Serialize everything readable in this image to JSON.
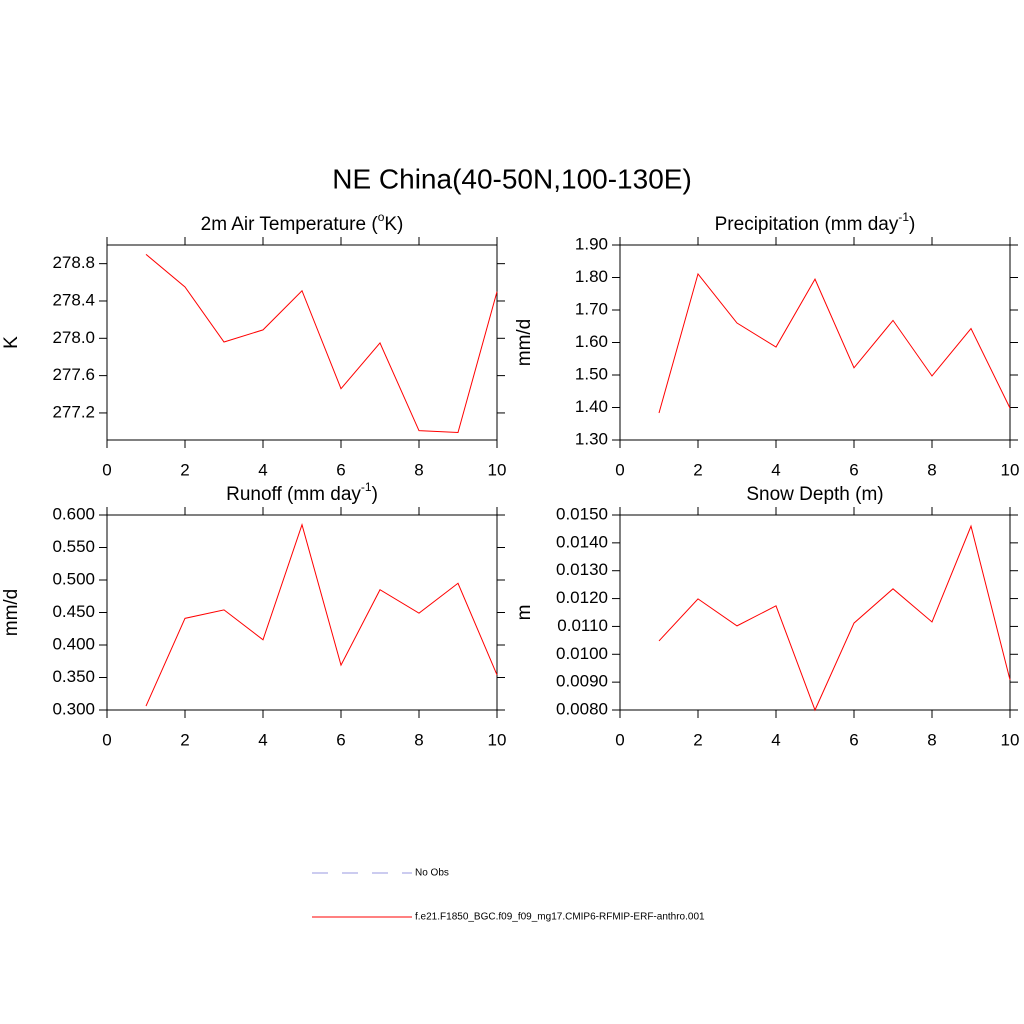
{
  "title": "NE China(40-50N,100-130E)",
  "legend": [
    {
      "label": "No Obs",
      "color": "#9a9ae0",
      "dashed": true
    },
    {
      "label": "f.e21.F1850_BGC.f09_f09_mg17.CMIP6-RFMIP-ERF-anthro.001",
      "color": "#ff0000",
      "dashed": false
    }
  ],
  "chart_data": [
    {
      "type": "line",
      "title": [
        {
          "text": "2m Air Temperature ("
        },
        {
          "text": "o",
          "sup": true
        },
        {
          "text": "K)"
        }
      ],
      "y_label": "K",
      "x": [
        1,
        2,
        3,
        4,
        5,
        6,
        7,
        8,
        9,
        10
      ],
      "values": [
        278.9,
        278.55,
        277.96,
        278.09,
        278.51,
        277.46,
        277.95,
        277.01,
        276.99,
        278.5
      ],
      "color": "#ff0000",
      "xlim": [
        0,
        10
      ],
      "xticks": [
        0,
        2,
        4,
        6,
        8,
        10
      ],
      "ylim": [
        276.91,
        279.0
      ],
      "yticks": [
        277.2,
        277.6,
        {
          "value": 278.0,
          "label": "278.0"
        },
        278.4,
        278.8
      ]
    },
    {
      "type": "line",
      "title": [
        {
          "text": "Precipitation (mm day"
        },
        {
          "text": "-1",
          "sup": true
        },
        {
          "text": ")"
        }
      ],
      "y_label": "mm/d",
      "x": [
        1,
        2,
        3,
        4,
        5,
        6,
        7,
        8,
        9,
        10
      ],
      "values": [
        1.383,
        1.811,
        1.66,
        1.586,
        1.795,
        1.522,
        1.668,
        1.497,
        1.643,
        1.398
      ],
      "color": "#ff0000",
      "xlim": [
        0,
        10
      ],
      "xticks": [
        0,
        2,
        4,
        6,
        8,
        10
      ],
      "ylim": [
        1.3,
        1.9
      ],
      "yticks": [
        {
          "value": 1.3,
          "label": "1.30"
        },
        {
          "value": 1.4,
          "label": "1.40"
        },
        {
          "value": 1.5,
          "label": "1.50"
        },
        {
          "value": 1.6,
          "label": "1.60"
        },
        {
          "value": 1.7,
          "label": "1.70"
        },
        {
          "value": 1.8,
          "label": "1.80"
        },
        {
          "value": 1.9,
          "label": "1.90"
        }
      ]
    },
    {
      "type": "line",
      "title": [
        {
          "text": "Runoff (mm day"
        },
        {
          "text": "-1",
          "sup": true
        },
        {
          "text": ")"
        }
      ],
      "y_label": "mm/d",
      "x": [
        1,
        2,
        3,
        4,
        5,
        6,
        7,
        8,
        9,
        10
      ],
      "values": [
        0.306,
        0.441,
        0.454,
        0.408,
        0.585,
        0.369,
        0.485,
        0.449,
        0.495,
        0.354
      ],
      "color": "#ff0000",
      "xlim": [
        0,
        10
      ],
      "xticks": [
        0,
        2,
        4,
        6,
        8,
        10
      ],
      "ylim": [
        0.3,
        0.6
      ],
      "yticks": [
        {
          "value": 0.3,
          "label": "0.300"
        },
        {
          "value": 0.35,
          "label": "0.350"
        },
        {
          "value": 0.4,
          "label": "0.400"
        },
        {
          "value": 0.45,
          "label": "0.450"
        },
        {
          "value": 0.5,
          "label": "0.500"
        },
        {
          "value": 0.55,
          "label": "0.550"
        },
        {
          "value": 0.6,
          "label": "0.600"
        }
      ]
    },
    {
      "type": "line",
      "title": [
        {
          "text": "Snow Depth (m)"
        }
      ],
      "y_label": "m",
      "x": [
        1,
        2,
        3,
        4,
        5,
        6,
        7,
        8,
        9,
        10
      ],
      "values": [
        0.01048,
        0.01199,
        0.01102,
        0.01174,
        0.008,
        0.01112,
        0.01235,
        0.01116,
        0.0146,
        0.00908
      ],
      "color": "#ff0000",
      "xlim": [
        0,
        10
      ],
      "xticks": [
        0,
        2,
        4,
        6,
        8,
        10
      ],
      "ylim": [
        0.008,
        0.015
      ],
      "yticks": [
        {
          "value": 0.008,
          "label": "0.0080"
        },
        {
          "value": 0.009,
          "label": "0.0090"
        },
        {
          "value": 0.01,
          "label": "0.0100"
        },
        {
          "value": 0.011,
          "label": "0.0110"
        },
        {
          "value": 0.012,
          "label": "0.0120"
        },
        {
          "value": 0.013,
          "label": "0.0130"
        },
        {
          "value": 0.014,
          "label": "0.0140"
        },
        {
          "value": 0.015,
          "label": "0.0150"
        }
      ]
    }
  ]
}
